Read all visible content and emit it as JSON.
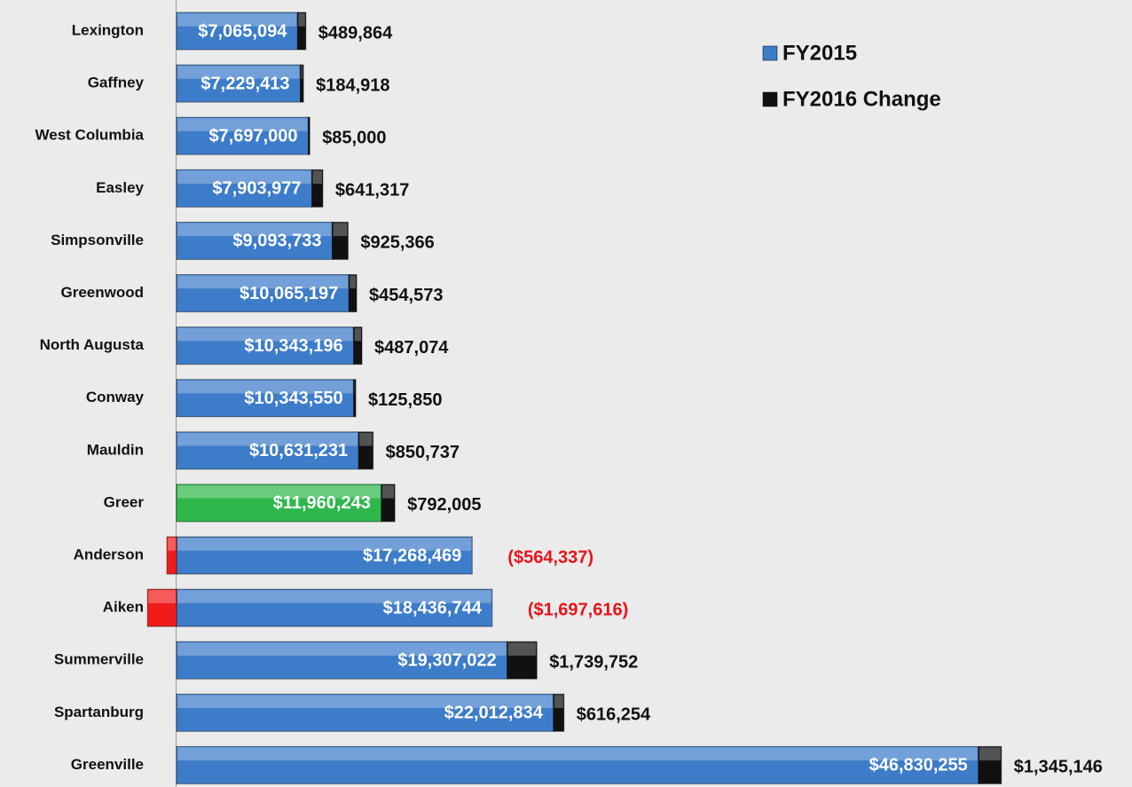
{
  "chart_data": {
    "type": "stacked-bar-horizontal",
    "categories": [
      "Lexington",
      "Gaffney",
      "West Columbia",
      "Easley",
      "Simpsonville",
      "Greenwood",
      "North Augusta",
      "Conway",
      "Mauldin",
      "Greer",
      "Anderson",
      "Aiken",
      "Summerville",
      "Spartanburg",
      "Greenville"
    ],
    "series": [
      {
        "name": "FY2015",
        "color": "#3d7cc9",
        "colors": [
          "#3d7cc9",
          "#3d7cc9",
          "#3d7cc9",
          "#3d7cc9",
          "#3d7cc9",
          "#3d7cc9",
          "#3d7cc9",
          "#3d7cc9",
          "#3d7cc9",
          "#2eb84b",
          "#3d7cc9",
          "#3d7cc9",
          "#3d7cc9",
          "#3d7cc9",
          "#3d7cc9"
        ],
        "values": [
          7065094,
          7229413,
          7697000,
          7903977,
          9093733,
          10065197,
          10343196,
          10343550,
          10631231,
          11960243,
          17268469,
          18436744,
          19307022,
          22012834,
          46830255
        ],
        "value_labels": [
          "$7,065,094",
          "$7,229,413",
          "$7,697,000",
          "$7,903,977",
          "$9,093,733",
          "$10,065,197",
          "$10,343,196",
          "$10,343,550",
          "$10,631,231",
          "$11,960,243",
          "$17,268,469",
          "$18,436,744",
          "$19,307,022",
          "$22,012,834",
          "$46,830,255"
        ]
      },
      {
        "name": "FY2016 Change",
        "color": "#111111",
        "negative_color": "#f01c1c",
        "values": [
          489864,
          184918,
          85000,
          641317,
          925366,
          454573,
          487074,
          125850,
          850737,
          792005,
          -564337,
          -1697616,
          1739752,
          616254,
          1345146
        ],
        "value_labels": [
          "$489,864",
          "$184,918",
          "$85,000",
          "$641,317",
          "$925,366",
          "$454,573",
          "$487,074",
          "$125,850",
          "$850,737",
          "$792,005",
          "($564,337)",
          "($1,697,616)",
          "$1,739,752",
          "$616,254",
          "$1,345,146"
        ]
      }
    ],
    "xlim": [
      0,
      50000000
    ],
    "legend": "top-right"
  }
}
